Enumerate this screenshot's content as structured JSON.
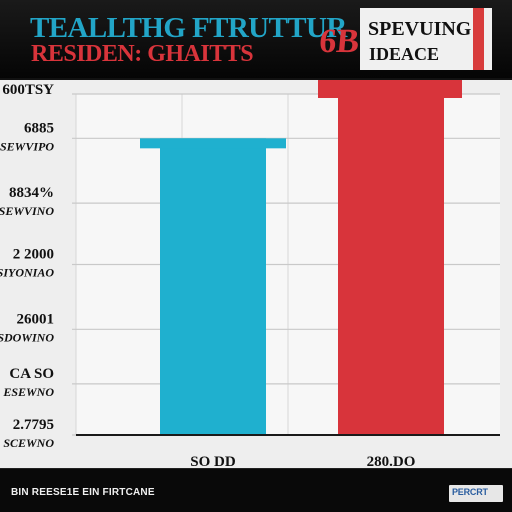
{
  "header": {
    "title_line1": "TEALLTHG FTRUTTUR",
    "title_line2": "RESIDEN: GHAITTS",
    "badge": "6B",
    "panel_line1": "SPEVUING",
    "panel_line2": "IDEACE"
  },
  "footer": {
    "text": "BIN REESE1E EIN FIRTCANE",
    "logo": "PERCRT"
  },
  "chart_data": {
    "type": "bar",
    "title": "",
    "xlabel": "",
    "ylabel": "",
    "ylim": [
      0,
      100
    ],
    "categories": [
      "SO DD",
      "280.DO"
    ],
    "values": [
      87,
      100
    ],
    "colors": [
      "#1fb0cf",
      "#d8343b"
    ],
    "y_ticks": [
      {
        "label": "600TSY",
        "sub": "",
        "value": 100
      },
      {
        "label": "6885",
        "sub": "SEWVIPO",
        "value": 87
      },
      {
        "label": "8834%",
        "sub": "SEWVINO",
        "value": 68
      },
      {
        "label": "2 2000",
        "sub": "SIYONIAO",
        "value": 50
      },
      {
        "label": "26001",
        "sub": "SDOWINO",
        "value": 31
      },
      {
        "label": "CA SO",
        "sub": "ESEWNO",
        "value": 15
      },
      {
        "label": "2.7795",
        "sub": "SCEWNO",
        "value": 0
      }
    ],
    "grid": true,
    "legend": "none"
  }
}
